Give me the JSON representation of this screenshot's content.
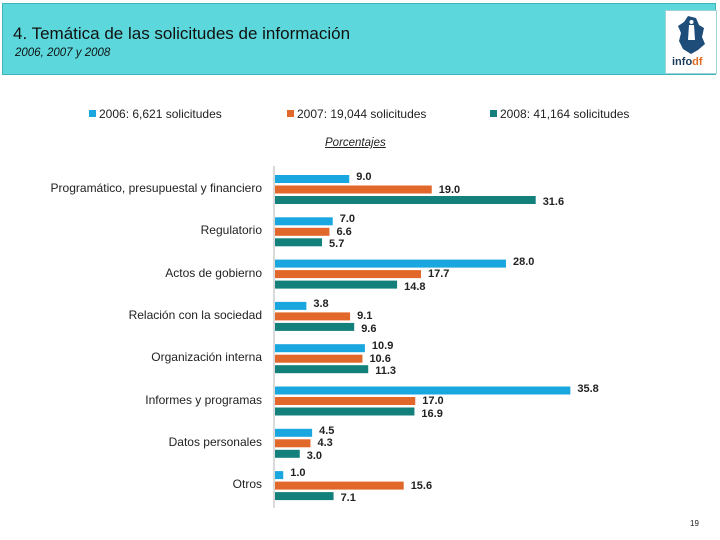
{
  "header": {
    "title": "4. Temática de las solicitudes de información",
    "subtitle": "2006, 2007 y 2008",
    "logo_text": "infodf",
    "logo_text_main": "info",
    "logo_text_accent": "df"
  },
  "page_number": "19",
  "colors": {
    "header_bg": "#5cd8dc",
    "series_2006": "#1aa7e0",
    "series_2007": "#e2672a",
    "series_2008": "#14807c"
  },
  "chart_data": {
    "type": "bar",
    "orientation": "horizontal",
    "title": "Porcentajes",
    "legend_position": "top",
    "categories": [
      "Programático, presupuestal y financiero",
      "Regulatorio",
      "Actos de gobierno",
      "Relación con la sociedad",
      "Organización interna",
      "Informes y programas",
      "Datos personales",
      "Otros"
    ],
    "series": [
      {
        "name": "2006: 6,621 solicitudes",
        "color": "#1aa7e0",
        "values": [
          9.0,
          7.0,
          28.0,
          3.8,
          10.9,
          35.8,
          4.5,
          1.0
        ]
      },
      {
        "name": "2007: 19,044 solicitudes",
        "color": "#e2672a",
        "values": [
          19.0,
          6.6,
          17.7,
          9.1,
          10.6,
          17.0,
          4.3,
          15.6
        ]
      },
      {
        "name": "2008: 41,164 solicitudes",
        "color": "#14807c",
        "values": [
          31.6,
          5.7,
          14.8,
          9.6,
          11.3,
          16.9,
          3.0,
          7.1
        ]
      }
    ],
    "value_labels": [
      [
        "9.0",
        "7.0",
        "28.0",
        "3.8",
        "10.9",
        "35.8",
        "4.5",
        "1.0"
      ],
      [
        "19.0",
        "6.6",
        "17.7",
        "9.1",
        "10.6",
        "17.0",
        "4.3",
        "15.6"
      ],
      [
        "31.6",
        "5.7",
        "14.8",
        "9.6",
        "11.3",
        "16.9",
        "3.0",
        "7.1"
      ]
    ],
    "xlim": [
      0,
      40
    ],
    "xlabel": "",
    "ylabel": "",
    "grid": false
  }
}
